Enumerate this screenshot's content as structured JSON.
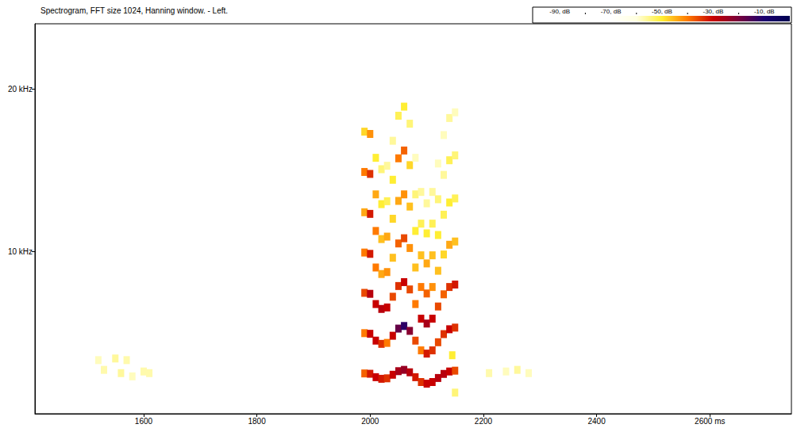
{
  "chart_data": {
    "type": "heatmap",
    "title": "Spectrogram, FFT size 1024, Hanning window. - Left.",
    "xlim": [
      1408,
      2744
    ],
    "xticks": [
      1600,
      1800,
      2000,
      2200,
      2400,
      {
        "value": 2600,
        "label": "2600 ms"
      }
    ],
    "ylim": [
      0,
      24
    ],
    "yticks": [
      {
        "value": 10,
        "label": "10 kHz"
      },
      {
        "value": 20,
        "label": "20 kHz"
      }
    ],
    "colorbar": {
      "range": [
        -100,
        0
      ],
      "ticks": [
        {
          "value": -90,
          "label": "-90, dB"
        },
        {
          "value": -70,
          "label": "-70, dB"
        },
        {
          "value": -50,
          "label": "-50, dB"
        },
        {
          "value": -30,
          "label": "-30, dB"
        },
        {
          "value": -10,
          "label": "-10, dB"
        }
      ]
    },
    "cells": [
      [
        1990,
        2.48,
        -38
      ],
      [
        2000,
        2.46,
        -32
      ],
      [
        2010,
        2.25,
        -30
      ],
      [
        2020,
        2.15,
        -32
      ],
      [
        2030,
        2.18,
        -34
      ],
      [
        2040,
        2.4,
        -30
      ],
      [
        2050,
        2.62,
        -26
      ],
      [
        2060,
        2.7,
        -24
      ],
      [
        2070,
        2.55,
        -28
      ],
      [
        2080,
        2.25,
        -32
      ],
      [
        2090,
        1.95,
        -34
      ],
      [
        2100,
        1.85,
        -30
      ],
      [
        2110,
        1.95,
        -30
      ],
      [
        2120,
        2.2,
        -28
      ],
      [
        2130,
        2.45,
        -28
      ],
      [
        2140,
        2.6,
        -30
      ],
      [
        2150,
        2.65,
        -36
      ],
      [
        1990,
        4.96,
        -40
      ],
      [
        2000,
        4.92,
        -30
      ],
      [
        2010,
        4.5,
        -30
      ],
      [
        2020,
        4.3,
        -34
      ],
      [
        2030,
        4.36,
        -40
      ],
      [
        2040,
        4.8,
        -30
      ],
      [
        2050,
        5.24,
        -18
      ],
      [
        2060,
        5.4,
        -12
      ],
      [
        2070,
        5.1,
        -22
      ],
      [
        2080,
        4.5,
        -36
      ],
      [
        2090,
        3.9,
        -40
      ],
      [
        2100,
        3.7,
        -32
      ],
      [
        2110,
        3.9,
        -34
      ],
      [
        2120,
        4.4,
        -36
      ],
      [
        2130,
        4.9,
        -34
      ],
      [
        2140,
        5.2,
        -30
      ],
      [
        2150,
        5.3,
        -34
      ],
      [
        1990,
        7.44,
        -36
      ],
      [
        2000,
        7.38,
        -28
      ],
      [
        2010,
        6.75,
        -30
      ],
      [
        2020,
        6.45,
        -28
      ],
      [
        2030,
        6.54,
        -30
      ],
      [
        2040,
        7.2,
        -36
      ],
      [
        2050,
        7.86,
        -34
      ],
      [
        2060,
        8.1,
        -30
      ],
      [
        2070,
        7.65,
        -36
      ],
      [
        2080,
        6.75,
        -40
      ],
      [
        2090,
        5.85,
        -30
      ],
      [
        2100,
        5.55,
        -26
      ],
      [
        2110,
        5.85,
        -30
      ],
      [
        2120,
        6.6,
        -36
      ],
      [
        2130,
        7.35,
        -38
      ],
      [
        2140,
        7.8,
        -34
      ],
      [
        2150,
        7.95,
        -32
      ],
      [
        1990,
        9.92,
        -40
      ],
      [
        2000,
        9.84,
        -32
      ],
      [
        2010,
        9.0,
        -40
      ],
      [
        2020,
        8.6,
        -44
      ],
      [
        2030,
        8.72,
        -42
      ],
      [
        2040,
        9.6,
        -46
      ],
      [
        2050,
        10.48,
        -38
      ],
      [
        2060,
        10.8,
        -36
      ],
      [
        2070,
        10.2,
        -42
      ],
      [
        2080,
        9.0,
        -46
      ],
      [
        2090,
        7.8,
        -40
      ],
      [
        2100,
        7.4,
        -38
      ],
      [
        2110,
        7.8,
        -42
      ],
      [
        2120,
        8.8,
        -46
      ],
      [
        2130,
        9.8,
        -48
      ],
      [
        2140,
        10.4,
        -44
      ],
      [
        2150,
        10.6,
        -46
      ],
      [
        1990,
        12.4,
        -44
      ],
      [
        2000,
        12.3,
        -32
      ],
      [
        2010,
        11.25,
        -40
      ],
      [
        2020,
        10.75,
        -46
      ],
      [
        2030,
        10.9,
        -44
      ],
      [
        2040,
        12.0,
        -48
      ],
      [
        2050,
        13.1,
        -44
      ],
      [
        2060,
        13.5,
        -42
      ],
      [
        2070,
        12.75,
        -46
      ],
      [
        2080,
        11.25,
        -50
      ],
      [
        2090,
        9.75,
        -46
      ],
      [
        2100,
        9.25,
        -44
      ],
      [
        2110,
        9.75,
        -46
      ],
      [
        2120,
        11.0,
        -50
      ],
      [
        2130,
        12.25,
        -52
      ],
      [
        2140,
        13.0,
        -50
      ],
      [
        2150,
        13.25,
        -52
      ],
      [
        1990,
        14.88,
        -40
      ],
      [
        2000,
        14.76,
        -34
      ],
      [
        2010,
        13.5,
        -44
      ],
      [
        2020,
        12.9,
        -50
      ],
      [
        2030,
        13.08,
        -52
      ],
      [
        2040,
        14.4,
        -50
      ],
      [
        2050,
        15.72,
        -40
      ],
      [
        2060,
        16.2,
        -38
      ],
      [
        2070,
        15.3,
        -48
      ],
      [
        2080,
        13.5,
        -54
      ],
      [
        2090,
        11.7,
        -52
      ],
      [
        2100,
        11.1,
        -50
      ],
      [
        2110,
        11.7,
        -52
      ],
      [
        2120,
        13.2,
        -54
      ],
      [
        2130,
        14.7,
        -56
      ],
      [
        2140,
        15.6,
        -52
      ],
      [
        2150,
        15.9,
        -54
      ],
      [
        1990,
        17.36,
        -48
      ],
      [
        2000,
        17.22,
        -42
      ],
      [
        2010,
        15.75,
        -50
      ],
      [
        2020,
        15.05,
        -54
      ],
      [
        2030,
        15.26,
        -56
      ],
      [
        2040,
        16.8,
        -56
      ],
      [
        2050,
        18.34,
        -52
      ],
      [
        2060,
        18.9,
        -50
      ],
      [
        2070,
        17.85,
        -54
      ],
      [
        2080,
        15.75,
        -58
      ],
      [
        2090,
        13.65,
        -56
      ],
      [
        2100,
        12.95,
        -56
      ],
      [
        2110,
        13.65,
        -56
      ],
      [
        2120,
        15.4,
        -58
      ],
      [
        2130,
        17.15,
        -58
      ],
      [
        2140,
        18.2,
        -56
      ],
      [
        2150,
        18.55,
        -58
      ],
      [
        1520,
        3.3,
        -58
      ],
      [
        1550,
        3.4,
        -56
      ],
      [
        1570,
        3.3,
        -57
      ],
      [
        1530,
        2.7,
        -57
      ],
      [
        1560,
        2.5,
        -56
      ],
      [
        1600,
        2.6,
        -57
      ],
      [
        1580,
        2.3,
        -58
      ],
      [
        1610,
        2.5,
        -57
      ],
      [
        2210,
        2.5,
        -57
      ],
      [
        2240,
        2.6,
        -58
      ],
      [
        2260,
        2.7,
        -56
      ],
      [
        2280,
        2.5,
        -58
      ],
      [
        2150,
        1.3,
        -54
      ],
      [
        2145,
        3.6,
        -50
      ]
    ]
  }
}
